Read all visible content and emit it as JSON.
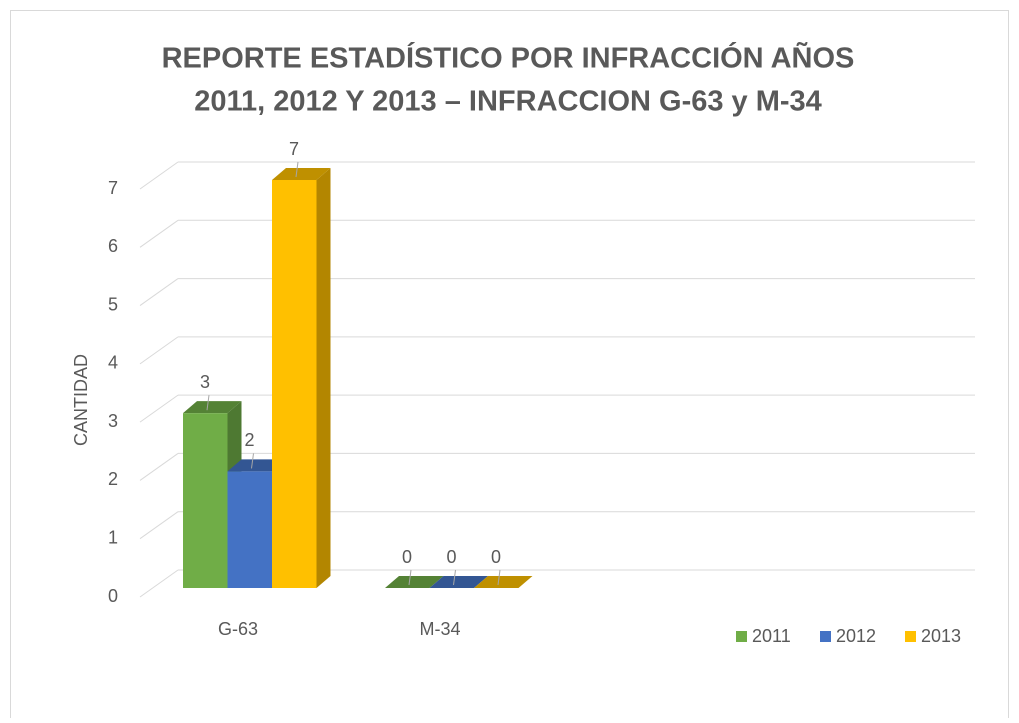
{
  "chart_data": {
    "type": "bar3d",
    "title_lines": [
      "REPORTE ESTADÍSTICO POR INFRACCIÓN AÑOS",
      "2011, 2012 Y 2013 – INFRACCION G-63 y M-34"
    ],
    "y_label": "CANTIDAD",
    "categories": [
      "G-63",
      "M-34"
    ],
    "series": [
      {
        "name": "2011",
        "color": "#70ad47",
        "values": [
          3,
          0
        ]
      },
      {
        "name": "2012",
        "color": "#4472c4",
        "values": [
          2,
          0
        ]
      },
      {
        "name": "2013",
        "color": "#ffc000",
        "values": [
          7,
          0
        ]
      }
    ],
    "ylim": [
      0,
      7
    ],
    "yticks": [
      0,
      1,
      2,
      3,
      4,
      5,
      6,
      7
    ],
    "grid": true,
    "legend": "bottom-right",
    "data_labels": true
  }
}
